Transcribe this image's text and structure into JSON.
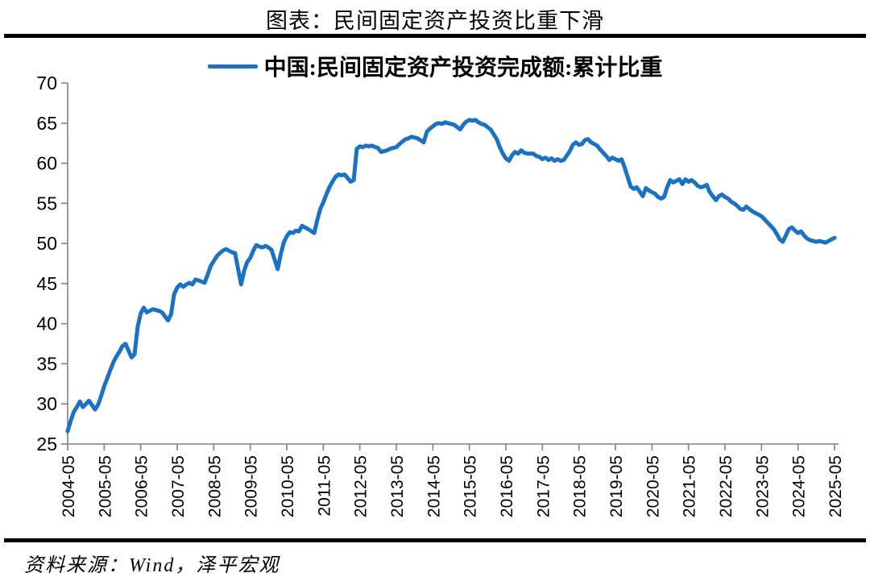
{
  "header": {
    "title": "图表：民间固定资产投资比重下滑"
  },
  "legend": {
    "label": "中国:民间固定资产投资完成额:累计比重"
  },
  "footer": {
    "source": "资料来源：Wind，泽平宏观"
  },
  "colors": {
    "line": "#1b72c4",
    "axis": "#808080",
    "text": "#000000",
    "rule": "#000000",
    "background": "#ffffff"
  },
  "chart_data": {
    "type": "line",
    "title": "图表：民间固定资产投资比重下滑",
    "series_name": "中国:民间固定资产投资完成额:累计比重",
    "unit": "%",
    "grid": false,
    "legend_position": "top-center",
    "ylim": [
      25,
      70
    ],
    "y_ticks": [
      25,
      30,
      35,
      40,
      45,
      50,
      55,
      60,
      65,
      70
    ],
    "x_tick_labels": [
      "2004-05",
      "2005-05",
      "2006-05",
      "2007-05",
      "2008-05",
      "2009-05",
      "2010-05",
      "2011-05",
      "2012-05",
      "2013-05",
      "2014-05",
      "2015-05",
      "2016-05",
      "2017-05",
      "2018-05",
      "2019-05",
      "2020-05",
      "2021-05",
      "2022-05",
      "2023-05",
      "2024-05",
      "2025-05"
    ],
    "points": [
      [
        "2004-05",
        26.6
      ],
      [
        "2004-06",
        27.9
      ],
      [
        "2004-07",
        29.0
      ],
      [
        "2004-08",
        29.6
      ],
      [
        "2004-09",
        30.3
      ],
      [
        "2004-10",
        29.6
      ],
      [
        "2004-11",
        30.0
      ],
      [
        "2004-12",
        30.4
      ],
      [
        "2005-02",
        29.3
      ],
      [
        "2005-03",
        29.9
      ],
      [
        "2005-04",
        31.0
      ],
      [
        "2005-05",
        32.2
      ],
      [
        "2005-06",
        33.2
      ],
      [
        "2005-07",
        34.2
      ],
      [
        "2005-08",
        35.2
      ],
      [
        "2005-09",
        35.9
      ],
      [
        "2005-10",
        36.5
      ],
      [
        "2005-11",
        37.2
      ],
      [
        "2005-12",
        37.5
      ],
      [
        "2006-02",
        35.8
      ],
      [
        "2006-03",
        36.2
      ],
      [
        "2006-04",
        39.6
      ],
      [
        "2006-05",
        41.3
      ],
      [
        "2006-06",
        42.0
      ],
      [
        "2006-07",
        41.4
      ],
      [
        "2006-08",
        41.6
      ],
      [
        "2006-09",
        41.8
      ],
      [
        "2006-10",
        41.7
      ],
      [
        "2006-11",
        41.6
      ],
      [
        "2006-12",
        41.4
      ],
      [
        "2007-02",
        40.4
      ],
      [
        "2007-03",
        41.2
      ],
      [
        "2007-04",
        43.7
      ],
      [
        "2007-05",
        44.5
      ],
      [
        "2007-06",
        44.9
      ],
      [
        "2007-07",
        44.6
      ],
      [
        "2007-08",
        44.9
      ],
      [
        "2007-09",
        45.1
      ],
      [
        "2007-10",
        44.9
      ],
      [
        "2007-11",
        45.5
      ],
      [
        "2007-12",
        45.4
      ],
      [
        "2008-02",
        45.1
      ],
      [
        "2008-03",
        46.1
      ],
      [
        "2008-04",
        47.2
      ],
      [
        "2008-05",
        47.8
      ],
      [
        "2008-06",
        48.4
      ],
      [
        "2008-07",
        48.8
      ],
      [
        "2008-08",
        49.1
      ],
      [
        "2008-09",
        49.3
      ],
      [
        "2008-10",
        49.1
      ],
      [
        "2008-11",
        48.9
      ],
      [
        "2008-12",
        48.8
      ],
      [
        "2009-02",
        44.9
      ],
      [
        "2009-03",
        46.6
      ],
      [
        "2009-04",
        47.7
      ],
      [
        "2009-05",
        48.2
      ],
      [
        "2009-06",
        49.1
      ],
      [
        "2009-07",
        49.8
      ],
      [
        "2009-08",
        49.6
      ],
      [
        "2009-09",
        49.5
      ],
      [
        "2009-10",
        49.7
      ],
      [
        "2009-11",
        49.5
      ],
      [
        "2009-12",
        49.2
      ],
      [
        "2010-02",
        46.8
      ],
      [
        "2010-03",
        48.6
      ],
      [
        "2010-04",
        50.1
      ],
      [
        "2010-05",
        50.9
      ],
      [
        "2010-06",
        51.4
      ],
      [
        "2010-07",
        51.3
      ],
      [
        "2010-08",
        51.6
      ],
      [
        "2010-09",
        51.5
      ],
      [
        "2010-10",
        52.2
      ],
      [
        "2010-11",
        52.0
      ],
      [
        "2010-12",
        51.8
      ],
      [
        "2011-02",
        51.3
      ],
      [
        "2011-03",
        52.9
      ],
      [
        "2011-04",
        54.3
      ],
      [
        "2011-05",
        55.1
      ],
      [
        "2011-06",
        56.1
      ],
      [
        "2011-07",
        57.0
      ],
      [
        "2011-08",
        57.7
      ],
      [
        "2011-09",
        58.3
      ],
      [
        "2011-10",
        58.6
      ],
      [
        "2011-11",
        58.5
      ],
      [
        "2011-12",
        58.6
      ],
      [
        "2012-02",
        57.7
      ],
      [
        "2012-03",
        57.9
      ],
      [
        "2012-04",
        61.8
      ],
      [
        "2012-05",
        62.1
      ],
      [
        "2012-06",
        62.0
      ],
      [
        "2012-07",
        62.2
      ],
      [
        "2012-08",
        62.1
      ],
      [
        "2012-09",
        62.2
      ],
      [
        "2012-10",
        62.0
      ],
      [
        "2012-11",
        61.9
      ],
      [
        "2012-12",
        61.4
      ],
      [
        "2013-02",
        61.6
      ],
      [
        "2013-03",
        61.8
      ],
      [
        "2013-04",
        61.9
      ],
      [
        "2013-05",
        62.0
      ],
      [
        "2013-06",
        62.4
      ],
      [
        "2013-07",
        62.7
      ],
      [
        "2013-08",
        63.0
      ],
      [
        "2013-09",
        63.1
      ],
      [
        "2013-10",
        63.3
      ],
      [
        "2013-11",
        63.2
      ],
      [
        "2013-12",
        63.1
      ],
      [
        "2014-02",
        62.6
      ],
      [
        "2014-03",
        63.9
      ],
      [
        "2014-04",
        64.3
      ],
      [
        "2014-05",
        64.6
      ],
      [
        "2014-06",
        64.9
      ],
      [
        "2014-07",
        65.0
      ],
      [
        "2014-08",
        64.9
      ],
      [
        "2014-09",
        65.1
      ],
      [
        "2014-10",
        65.0
      ],
      [
        "2014-11",
        64.9
      ],
      [
        "2014-12",
        64.8
      ],
      [
        "2015-02",
        64.2
      ],
      [
        "2015-03",
        64.8
      ],
      [
        "2015-04",
        65.2
      ],
      [
        "2015-05",
        65.4
      ],
      [
        "2015-06",
        65.3
      ],
      [
        "2015-07",
        65.4
      ],
      [
        "2015-08",
        65.1
      ],
      [
        "2015-09",
        64.9
      ],
      [
        "2015-10",
        64.8
      ],
      [
        "2015-11",
        64.5
      ],
      [
        "2015-12",
        64.2
      ],
      [
        "2016-02",
        63.0
      ],
      [
        "2016-03",
        62.0
      ],
      [
        "2016-04",
        61.2
      ],
      [
        "2016-05",
        60.6
      ],
      [
        "2016-06",
        60.3
      ],
      [
        "2016-07",
        61.0
      ],
      [
        "2016-08",
        61.4
      ],
      [
        "2016-09",
        61.2
      ],
      [
        "2016-10",
        61.6
      ],
      [
        "2016-11",
        61.3
      ],
      [
        "2016-12",
        61.2
      ],
      [
        "2017-02",
        61.2
      ],
      [
        "2017-03",
        60.9
      ],
      [
        "2017-04",
        60.8
      ],
      [
        "2017-05",
        60.5
      ],
      [
        "2017-06",
        60.7
      ],
      [
        "2017-07",
        60.4
      ],
      [
        "2017-08",
        60.6
      ],
      [
        "2017-09",
        60.3
      ],
      [
        "2017-10",
        60.5
      ],
      [
        "2017-11",
        60.3
      ],
      [
        "2017-12",
        60.4
      ],
      [
        "2018-02",
        61.5
      ],
      [
        "2018-03",
        62.3
      ],
      [
        "2018-04",
        62.6
      ],
      [
        "2018-05",
        62.3
      ],
      [
        "2018-06",
        62.4
      ],
      [
        "2018-07",
        62.9
      ],
      [
        "2018-08",
        63.0
      ],
      [
        "2018-09",
        62.6
      ],
      [
        "2018-10",
        62.4
      ],
      [
        "2018-11",
        62.2
      ],
      [
        "2018-12",
        61.7
      ],
      [
        "2019-02",
        60.9
      ],
      [
        "2019-03",
        60.4
      ],
      [
        "2019-04",
        60.7
      ],
      [
        "2019-05",
        60.5
      ],
      [
        "2019-06",
        60.3
      ],
      [
        "2019-07",
        60.5
      ],
      [
        "2019-08",
        59.5
      ],
      [
        "2019-09",
        58.3
      ],
      [
        "2019-10",
        57.1
      ],
      [
        "2019-11",
        56.8
      ],
      [
        "2019-12",
        57.0
      ],
      [
        "2020-02",
        55.9
      ],
      [
        "2020-03",
        56.9
      ],
      [
        "2020-04",
        56.6
      ],
      [
        "2020-05",
        56.4
      ],
      [
        "2020-06",
        56.2
      ],
      [
        "2020-07",
        55.8
      ],
      [
        "2020-08",
        55.6
      ],
      [
        "2020-09",
        55.8
      ],
      [
        "2020-10",
        57.0
      ],
      [
        "2020-11",
        57.9
      ],
      [
        "2020-12",
        57.6
      ],
      [
        "2021-02",
        58.0
      ],
      [
        "2021-03",
        57.4
      ],
      [
        "2021-04",
        58.0
      ],
      [
        "2021-05",
        57.7
      ],
      [
        "2021-06",
        57.9
      ],
      [
        "2021-07",
        57.6
      ],
      [
        "2021-08",
        57.2
      ],
      [
        "2021-09",
        57.0
      ],
      [
        "2021-10",
        57.1
      ],
      [
        "2021-11",
        57.3
      ],
      [
        "2021-12",
        56.4
      ],
      [
        "2022-02",
        55.4
      ],
      [
        "2022-03",
        55.9
      ],
      [
        "2022-04",
        56.1
      ],
      [
        "2022-05",
        55.8
      ],
      [
        "2022-06",
        55.6
      ],
      [
        "2022-07",
        55.2
      ],
      [
        "2022-08",
        55.0
      ],
      [
        "2022-09",
        54.7
      ],
      [
        "2022-10",
        54.3
      ],
      [
        "2022-11",
        54.2
      ],
      [
        "2022-12",
        54.6
      ],
      [
        "2023-02",
        54.0
      ],
      [
        "2023-03",
        53.8
      ],
      [
        "2023-04",
        53.6
      ],
      [
        "2023-05",
        53.4
      ],
      [
        "2023-06",
        53.0
      ],
      [
        "2023-07",
        52.6
      ],
      [
        "2023-08",
        52.2
      ],
      [
        "2023-09",
        51.8
      ],
      [
        "2023-10",
        51.2
      ],
      [
        "2023-11",
        50.5
      ],
      [
        "2023-12",
        50.2
      ],
      [
        "2024-02",
        51.8
      ],
      [
        "2024-03",
        52.0
      ],
      [
        "2024-04",
        51.6
      ],
      [
        "2024-05",
        51.3
      ],
      [
        "2024-06",
        51.5
      ],
      [
        "2024-07",
        51.0
      ],
      [
        "2024-08",
        50.6
      ],
      [
        "2024-09",
        50.4
      ],
      [
        "2024-10",
        50.3
      ],
      [
        "2024-11",
        50.2
      ],
      [
        "2024-12",
        50.3
      ],
      [
        "2025-02",
        50.1
      ],
      [
        "2025-03",
        50.3
      ],
      [
        "2025-04",
        50.5
      ],
      [
        "2025-05",
        50.7
      ]
    ]
  }
}
